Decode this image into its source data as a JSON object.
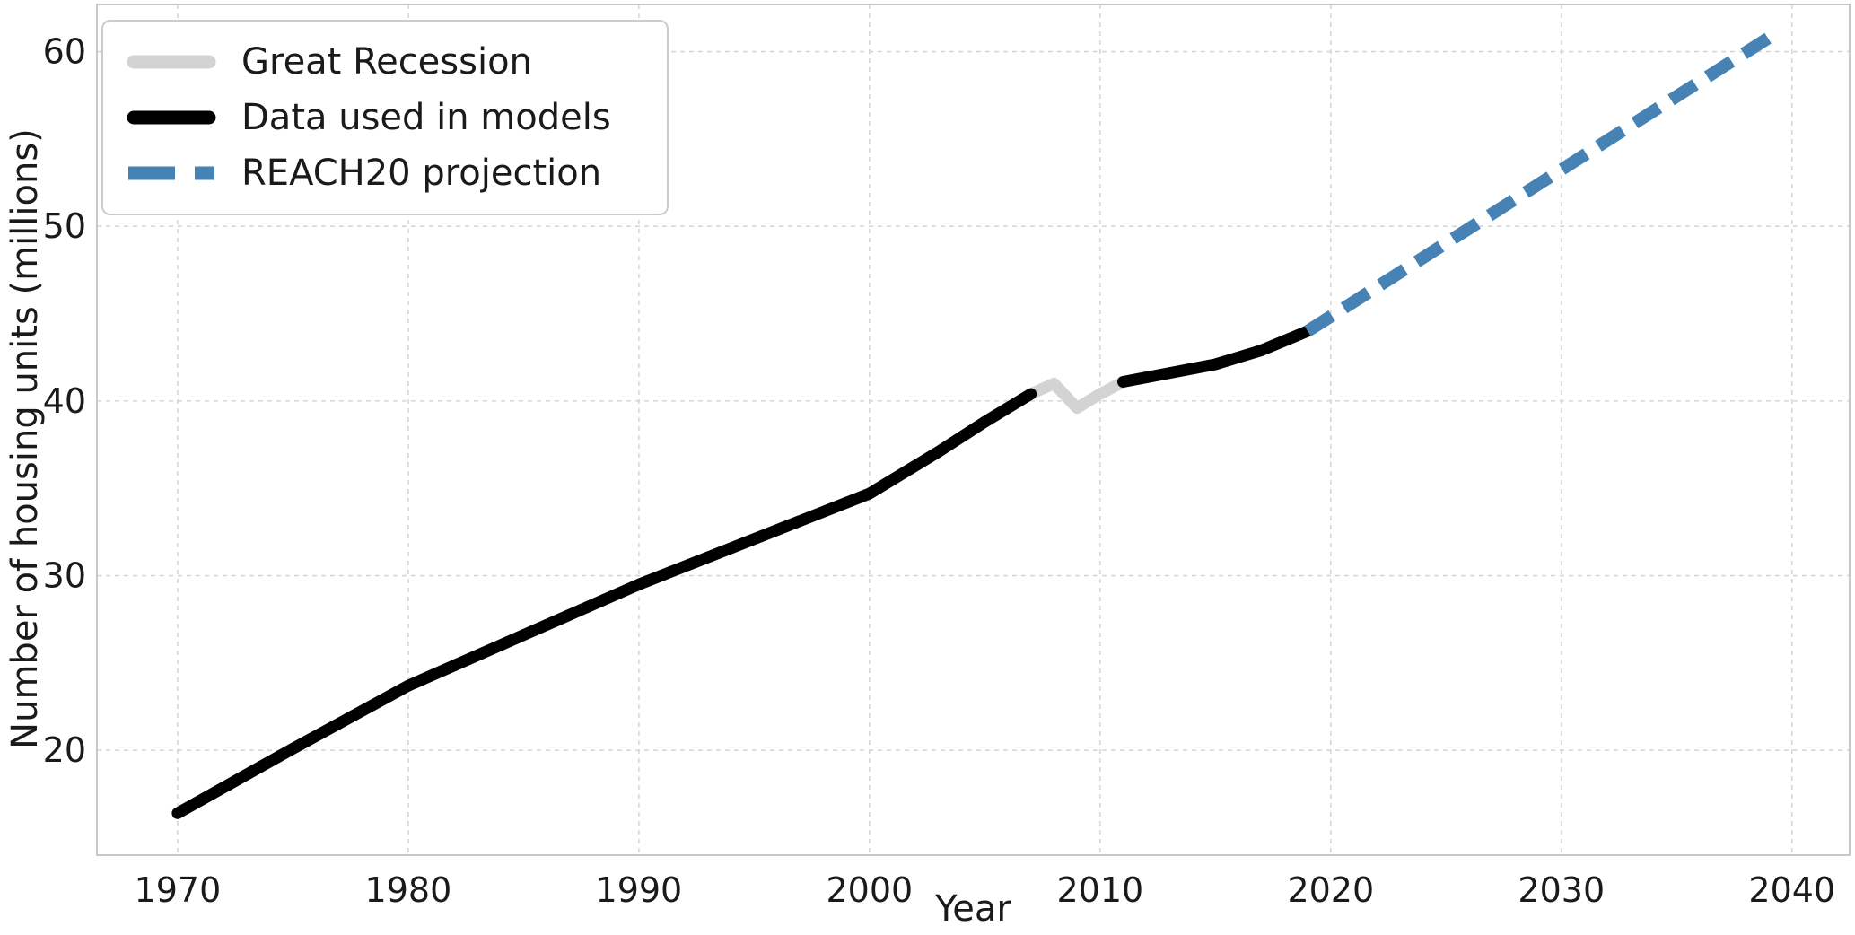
{
  "chart_data": {
    "type": "line",
    "title": "",
    "xlabel": "Year",
    "ylabel": "Number of housing units (millions)",
    "x_ticks": [
      1970,
      1980,
      1990,
      2000,
      2010,
      2020,
      2030,
      2040
    ],
    "y_ticks": [
      20,
      30,
      40,
      50,
      60
    ],
    "xlim": [
      1966.5,
      2042.5
    ],
    "ylim": [
      14.0,
      62.7
    ],
    "grid": true,
    "grid_style": "dashed",
    "legend_position": "upper-left",
    "colors": {
      "recession": "#d3d3d3",
      "historical": "#000000",
      "projection": "#4682b4",
      "gridline": "#d6d6d6",
      "spine": "#c8c8c8",
      "text": "#1a1a1a"
    },
    "series": [
      {
        "name": "Great Recession",
        "color": "#d3d3d3",
        "dash": "",
        "linecap": "round",
        "width": 13,
        "segments": [
          [
            [
              2007,
              40.4
            ],
            [
              2008,
              41.0
            ],
            [
              2009,
              39.6
            ],
            [
              2010,
              40.4
            ],
            [
              2011,
              41.1
            ]
          ]
        ]
      },
      {
        "name": "Data used in models",
        "color": "#000000",
        "dash": "",
        "linecap": "round",
        "width": 13,
        "segments": [
          [
            [
              1970,
              16.4
            ],
            [
              1975,
              20.1
            ],
            [
              1980,
              23.7
            ],
            [
              1985,
              26.6
            ],
            [
              1990,
              29.5
            ],
            [
              1995,
              32.1
            ],
            [
              2000,
              34.7
            ],
            [
              2003,
              37.1
            ],
            [
              2005,
              38.8
            ],
            [
              2007,
              40.4
            ]
          ],
          [
            [
              2011,
              41.1
            ],
            [
              2013,
              41.6
            ],
            [
              2015,
              42.1
            ],
            [
              2017,
              42.9
            ],
            [
              2019,
              44.0
            ]
          ]
        ]
      },
      {
        "name": "REACH20 projection",
        "color": "#4682b4",
        "dash": "32 16",
        "linecap": "butt",
        "width": 14,
        "segments": [
          [
            [
              2019,
              44.0
            ],
            [
              2024,
              48.2
            ],
            [
              2029,
              52.4
            ],
            [
              2034,
              56.6
            ],
            [
              2039,
              60.8
            ]
          ]
        ]
      }
    ]
  }
}
